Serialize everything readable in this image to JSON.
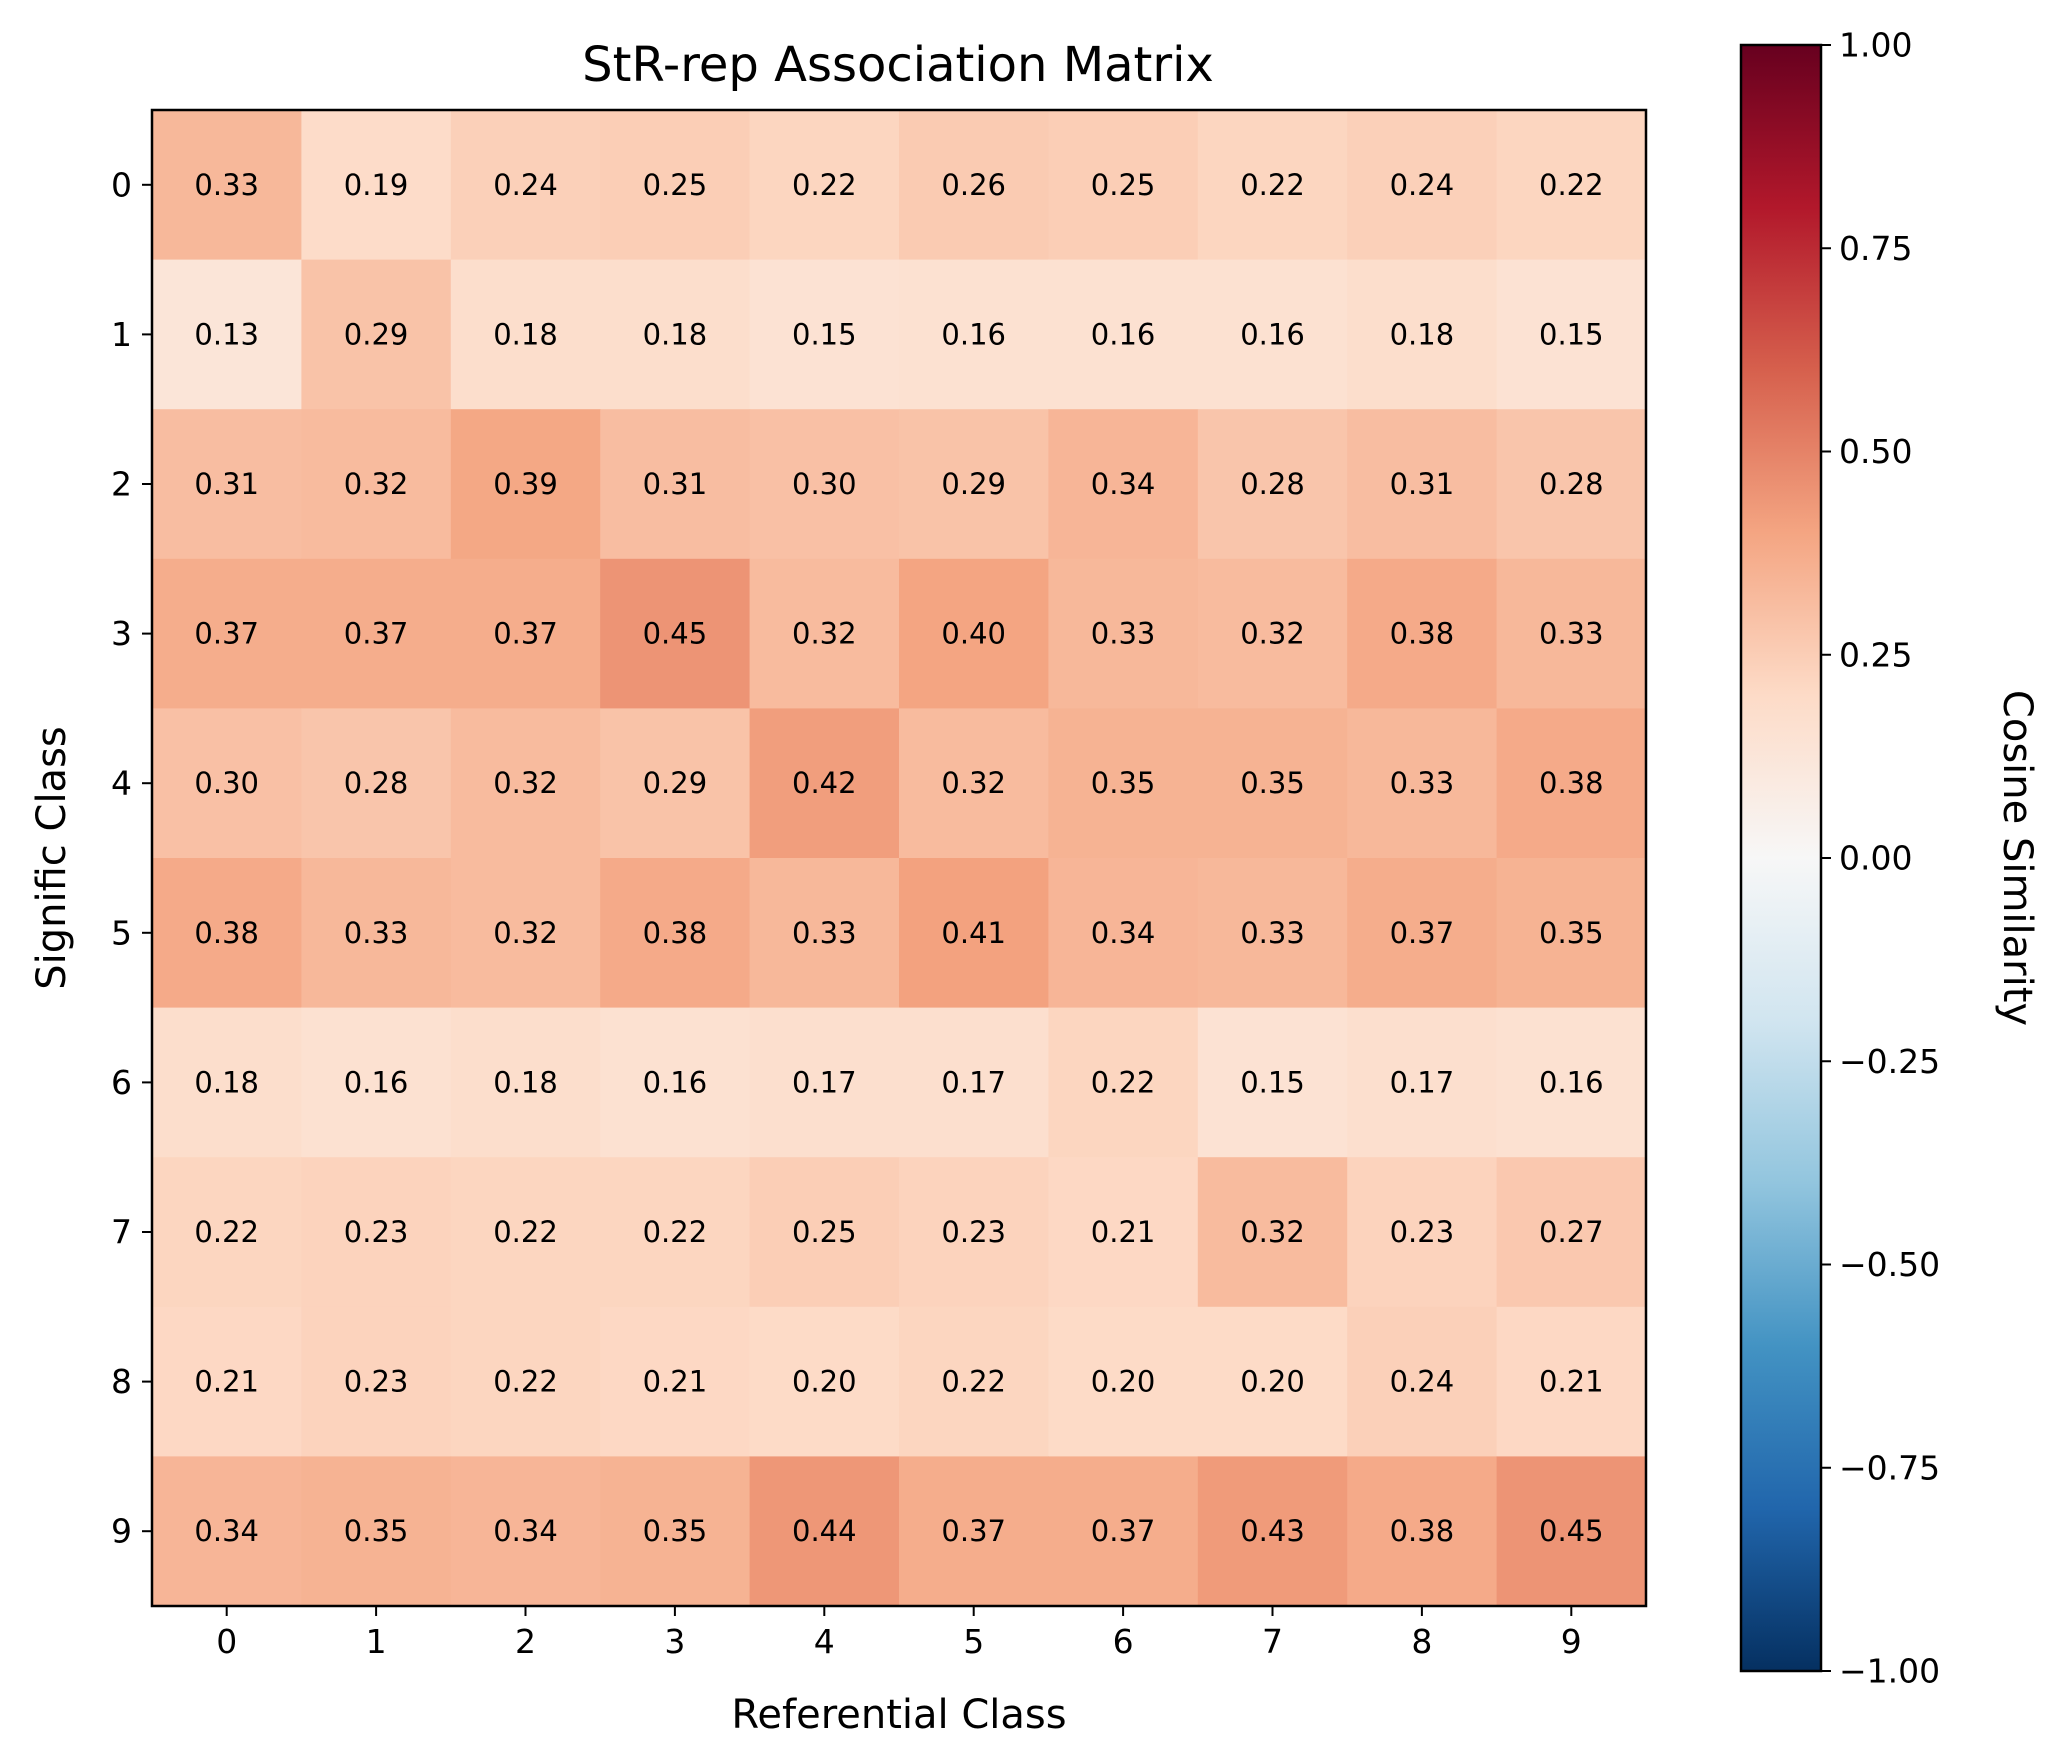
{
  "chart_data": {
    "type": "heatmap",
    "title": "StR-rep Association Matrix",
    "xlabel": "Referential Class",
    "ylabel": "Signific Class",
    "x_categories": [
      "0",
      "1",
      "2",
      "3",
      "4",
      "5",
      "6",
      "7",
      "8",
      "9"
    ],
    "y_categories": [
      "0",
      "1",
      "2",
      "3",
      "4",
      "5",
      "6",
      "7",
      "8",
      "9"
    ],
    "values": [
      [
        0.33,
        0.19,
        0.24,
        0.25,
        0.22,
        0.26,
        0.25,
        0.22,
        0.24,
        0.22
      ],
      [
        0.13,
        0.29,
        0.18,
        0.18,
        0.15,
        0.16,
        0.16,
        0.16,
        0.18,
        0.15
      ],
      [
        0.31,
        0.32,
        0.39,
        0.31,
        0.3,
        0.29,
        0.34,
        0.28,
        0.31,
        0.28
      ],
      [
        0.37,
        0.37,
        0.37,
        0.45,
        0.32,
        0.4,
        0.33,
        0.32,
        0.38,
        0.33
      ],
      [
        0.3,
        0.28,
        0.32,
        0.29,
        0.42,
        0.32,
        0.35,
        0.35,
        0.33,
        0.38
      ],
      [
        0.38,
        0.33,
        0.32,
        0.38,
        0.33,
        0.41,
        0.34,
        0.33,
        0.37,
        0.35
      ],
      [
        0.18,
        0.16,
        0.18,
        0.16,
        0.17,
        0.17,
        0.22,
        0.15,
        0.17,
        0.16
      ],
      [
        0.22,
        0.23,
        0.22,
        0.22,
        0.25,
        0.23,
        0.21,
        0.32,
        0.23,
        0.27
      ],
      [
        0.21,
        0.23,
        0.22,
        0.21,
        0.2,
        0.22,
        0.2,
        0.2,
        0.24,
        0.21
      ],
      [
        0.34,
        0.35,
        0.34,
        0.35,
        0.44,
        0.37,
        0.37,
        0.43,
        0.38,
        0.45
      ]
    ],
    "value_labels": [
      [
        "0.33",
        "0.19",
        "0.24",
        "0.25",
        "0.22",
        "0.26",
        "0.25",
        "0.22",
        "0.24",
        "0.22"
      ],
      [
        "0.13",
        "0.29",
        "0.18",
        "0.18",
        "0.15",
        "0.16",
        "0.16",
        "0.16",
        "0.18",
        "0.15"
      ],
      [
        "0.31",
        "0.32",
        "0.39",
        "0.31",
        "0.30",
        "0.29",
        "0.34",
        "0.28",
        "0.31",
        "0.28"
      ],
      [
        "0.37",
        "0.37",
        "0.37",
        "0.45",
        "0.32",
        "0.40",
        "0.33",
        "0.32",
        "0.38",
        "0.33"
      ],
      [
        "0.30",
        "0.28",
        "0.32",
        "0.29",
        "0.42",
        "0.32",
        "0.35",
        "0.35",
        "0.33",
        "0.38"
      ],
      [
        "0.38",
        "0.33",
        "0.32",
        "0.38",
        "0.33",
        "0.41",
        "0.34",
        "0.33",
        "0.37",
        "0.35"
      ],
      [
        "0.18",
        "0.16",
        "0.18",
        "0.16",
        "0.17",
        "0.17",
        "0.22",
        "0.15",
        "0.17",
        "0.16"
      ],
      [
        "0.22",
        "0.23",
        "0.22",
        "0.22",
        "0.25",
        "0.23",
        "0.21",
        "0.32",
        "0.23",
        "0.27"
      ],
      [
        "0.21",
        "0.23",
        "0.22",
        "0.21",
        "0.20",
        "0.22",
        "0.20",
        "0.20",
        "0.24",
        "0.21"
      ],
      [
        "0.34",
        "0.35",
        "0.34",
        "0.35",
        "0.44",
        "0.37",
        "0.37",
        "0.43",
        "0.38",
        "0.45"
      ]
    ],
    "colorbar": {
      "label": "Cosine Similarity",
      "colormap": "RdBu_r",
      "range": [
        -1.0,
        1.0
      ],
      "ticks": [
        1.0,
        0.75,
        0.5,
        0.25,
        0.0,
        -0.25,
        -0.5,
        -0.75,
        -1.0
      ],
      "tick_labels": [
        "1.00",
        "0.75",
        "0.50",
        "0.25",
        "0.00",
        "−0.25",
        "−0.50",
        "−0.75",
        "−1.00"
      ],
      "stops": [
        "#053061",
        "#2166ac",
        "#4393c3",
        "#92c5de",
        "#d1e5f0",
        "#f7f7f7",
        "#fddbc7",
        "#f4a582",
        "#d6604d",
        "#b2182b",
        "#67001f"
      ]
    },
    "grid": false,
    "legend": "none"
  }
}
